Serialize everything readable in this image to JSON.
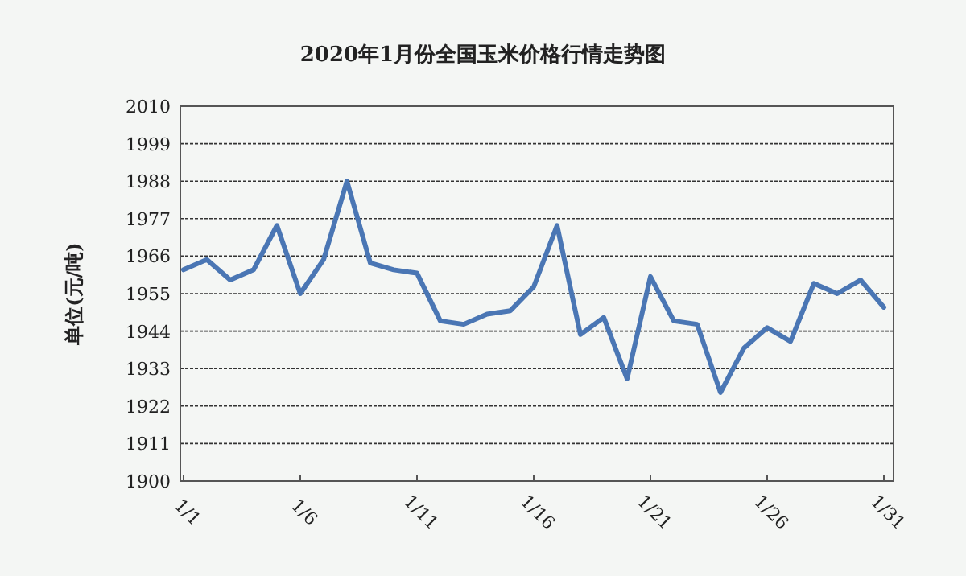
{
  "chart_data": {
    "type": "line",
    "title": "2020年1月份全国玉米价格行情走势图",
    "ylabel": "单位(元/吨)",
    "categories": [
      "1/1",
      null,
      null,
      null,
      null,
      "1/6",
      null,
      null,
      null,
      null,
      "1/11",
      null,
      null,
      null,
      null,
      "1/16",
      null,
      null,
      null,
      null,
      "1/21",
      null,
      null,
      null,
      null,
      "1/26",
      null,
      null,
      null,
      null,
      "1/31"
    ],
    "values": [
      1962,
      1965,
      1959,
      1962,
      1975,
      1955,
      1965,
      1988,
      1964,
      1962,
      1961,
      1947,
      1946,
      1949,
      1950,
      1957,
      1975,
      1943,
      1948,
      1930,
      1960,
      1947,
      1946,
      1926,
      1939,
      1945,
      1941,
      1958,
      1955,
      1959,
      1951
    ],
    "color": "#4a76b4",
    "ylim": [
      1900,
      2010
    ],
    "yticks": [
      1900,
      1911,
      1922,
      1933,
      1944,
      1955,
      1966,
      1977,
      1988,
      1999,
      2010
    ],
    "grid": "y",
    "line_style": "solid"
  }
}
